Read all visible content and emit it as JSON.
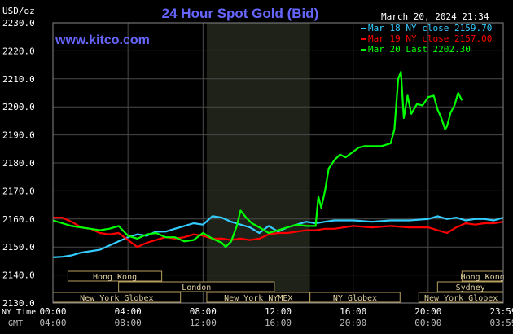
{
  "chart_data": {
    "type": "line",
    "title": "24 Hour Spot Gold (Bid)",
    "unit_label": "USD/oz",
    "timestamp": "March 20, 2024 21:34",
    "website": "www.kitco.com",
    "ylim": [
      2130,
      2230
    ],
    "y_ticks": [
      "2130.0",
      "2140.0",
      "2150.0",
      "2160.0",
      "2170.0",
      "2180.0",
      "2190.0",
      "2200.0",
      "2210.0",
      "2220.0",
      "2230.0"
    ],
    "x_row1_label": "NY Time",
    "x_row2_label": "GMT",
    "x_ticks_ny": [
      "00:00",
      "04:00",
      "08:00",
      "12:00",
      "16:00",
      "20:00",
      "23:59"
    ],
    "x_ticks_gmt": [
      "04:00",
      "08:00",
      "12:00",
      "16:00",
      "20:00",
      "00:00",
      "03:59"
    ],
    "highlight_hours": [
      8.2,
      13.7
    ],
    "market_sessions": [
      {
        "name": "Hong Kong",
        "start": 0.8,
        "end": 5.8
      },
      {
        "name": "London",
        "start": 3.5,
        "end": 11.8
      },
      {
        "name": "New York Globex",
        "start": 0,
        "end": 6.8
      },
      {
        "name": "New York NYMEX",
        "start": 8.2,
        "end": 13.7
      },
      {
        "name": "NY Globex",
        "start": 13.7,
        "end": 18.5
      },
      {
        "name": "Hong Kong",
        "start": 21.8,
        "end": 24
      },
      {
        "name": "Sydney",
        "start": 20.5,
        "end": 24
      },
      {
        "name": "New York Globex",
        "start": 19.5,
        "end": 24
      }
    ],
    "series": [
      {
        "name": "Mar 18 NY close 2159.70",
        "color": "#33ccff",
        "x": [
          0,
          0.5,
          1,
          1.5,
          2,
          2.5,
          3,
          3.5,
          4,
          4.5,
          5,
          5.5,
          6,
          6.5,
          7,
          7.5,
          8,
          8.5,
          9,
          9.5,
          10,
          10.5,
          11,
          11.5,
          12,
          12.5,
          13,
          13.5,
          14,
          14.5,
          15,
          16,
          17,
          18,
          19,
          20,
          20.5,
          21,
          21.5,
          22,
          22.5,
          23,
          23.5,
          24
        ],
        "values": [
          2146.3,
          2146.5,
          2147.0,
          2148.0,
          2148.5,
          2149.0,
          2150.5,
          2152.0,
          2153.5,
          2154.5,
          2154.0,
          2155.5,
          2155.5,
          2156.5,
          2157.5,
          2158.5,
          2158.0,
          2161.0,
          2160.5,
          2159.0,
          2158.0,
          2157.0,
          2155.0,
          2157.5,
          2155.5,
          2157.0,
          2158.0,
          2159.0,
          2158.5,
          2159.0,
          2159.5,
          2159.5,
          2159.0,
          2159.5,
          2159.5,
          2160.0,
          2161.0,
          2160.0,
          2160.5,
          2159.5,
          2160.0,
          2160.0,
          2159.5,
          2160.5
        ]
      },
      {
        "name": "Mar 19 NY close 2157.00",
        "color": "#ff0000",
        "x": [
          0,
          0.5,
          1,
          1.5,
          2,
          2.5,
          3,
          3.5,
          4,
          4.5,
          5,
          5.5,
          6,
          6.5,
          7,
          7.5,
          8,
          8.5,
          9,
          9.5,
          10,
          10.5,
          11,
          11.5,
          12,
          12.5,
          13,
          13.5,
          14,
          14.5,
          15,
          16,
          17,
          18,
          19,
          20,
          20.5,
          21,
          21.5,
          22,
          22.5,
          23,
          23.5,
          24
        ],
        "values": [
          2160.5,
          2160.5,
          2159.0,
          2157.0,
          2156.5,
          2155.0,
          2154.5,
          2155.0,
          2152.5,
          2150.0,
          2151.5,
          2152.5,
          2153.5,
          2153.0,
          2153.5,
          2154.5,
          2154.0,
          2153.0,
          2153.0,
          2152.5,
          2153.0,
          2152.5,
          2153.0,
          2154.5,
          2155.0,
          2155.0,
          2155.5,
          2156.0,
          2156.0,
          2156.5,
          2156.5,
          2157.5,
          2157.0,
          2157.5,
          2157.0,
          2157.0,
          2156.0,
          2155.0,
          2157.0,
          2158.5,
          2158.0,
          2158.5,
          2158.5,
          2159.0
        ]
      },
      {
        "name": "Mar 20 Last 2202.30",
        "color": "#00ff00",
        "x": [
          0,
          0.5,
          1,
          1.5,
          2,
          2.5,
          3,
          3.5,
          4,
          4.5,
          5,
          5.5,
          6,
          6.5,
          7,
          7.5,
          8,
          8.5,
          9,
          9.2,
          9.5,
          9.8,
          10,
          10.3,
          10.6,
          11,
          11.5,
          12,
          12.5,
          13,
          13.5,
          14,
          14.15,
          14.3,
          14.5,
          14.7,
          15,
          15.3,
          15.6,
          16,
          16.3,
          16.6,
          17,
          17.5,
          18,
          18.2,
          18.4,
          18.55,
          18.7,
          18.9,
          19.1,
          19.4,
          19.7,
          20,
          20.3,
          20.5,
          20.7,
          20.9,
          21,
          21.2,
          21.4,
          21.6,
          21.8
        ],
        "values": [
          2159.5,
          2158.5,
          2157.5,
          2157.0,
          2156.5,
          2156.0,
          2156.5,
          2157.5,
          2154.0,
          2153.0,
          2154.5,
          2155.0,
          2153.5,
          2153.5,
          2152.0,
          2152.5,
          2155.0,
          2153.0,
          2151.5,
          2150.0,
          2152.0,
          2157.5,
          2163.0,
          2160.5,
          2158.5,
          2157.0,
          2155.0,
          2156.0,
          2157.0,
          2158.0,
          2157.5,
          2157.5,
          2168.0,
          2164.0,
          2170.0,
          2178.0,
          2181.0,
          2183.0,
          2182.0,
          2184.0,
          2185.5,
          2186.0,
          2186.0,
          2186.0,
          2187.0,
          2192.0,
          2210.0,
          2212.5,
          2196.0,
          2204.0,
          2197.5,
          2201.0,
          2200.5,
          2203.5,
          2204.0,
          2199.0,
          2196.0,
          2192.0,
          2193.0,
          2198.0,
          2200.5,
          2205.0,
          2202.3
        ]
      }
    ]
  }
}
